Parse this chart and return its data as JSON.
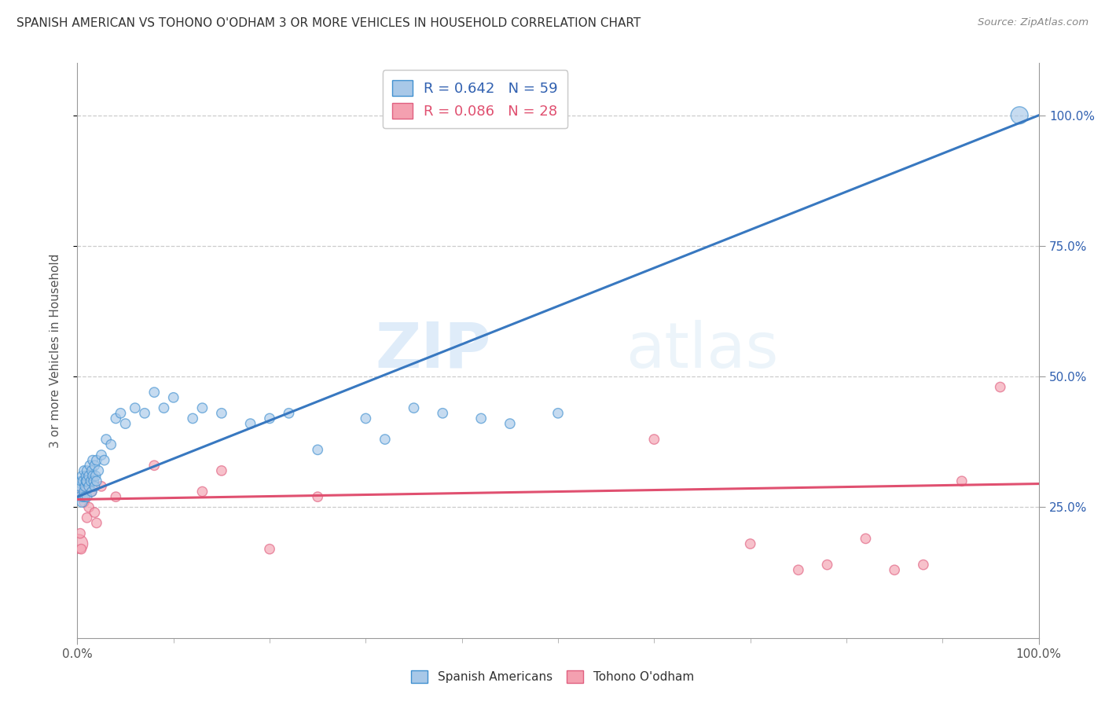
{
  "title": "SPANISH AMERICAN VS TOHONO O'ODHAM 3 OR MORE VEHICLES IN HOUSEHOLD CORRELATION CHART",
  "source": "Source: ZipAtlas.com",
  "ylabel": "3 or more Vehicles in Household",
  "watermark_zip": "ZIP",
  "watermark_atlas": "atlas",
  "blue_R": 0.642,
  "blue_N": 59,
  "pink_R": 0.086,
  "pink_N": 28,
  "blue_fill": "#a8c8e8",
  "pink_fill": "#f4a0b0",
  "blue_edge": "#4090d0",
  "pink_edge": "#e06080",
  "blue_line": "#3878c0",
  "pink_line": "#e05070",
  "blue_legend_text": "#3060b0",
  "pink_legend_text": "#e05070",
  "bg_color": "#ffffff",
  "grid_color": "#cccccc",
  "title_color": "#333333",
  "blue_points_x": [
    0.001,
    0.002,
    0.003,
    0.004,
    0.005,
    0.005,
    0.006,
    0.006,
    0.007,
    0.007,
    0.008,
    0.008,
    0.009,
    0.009,
    0.01,
    0.01,
    0.01,
    0.012,
    0.012,
    0.013,
    0.014,
    0.015,
    0.015,
    0.016,
    0.016,
    0.017,
    0.018,
    0.018,
    0.019,
    0.02,
    0.02,
    0.022,
    0.025,
    0.028,
    0.03,
    0.035,
    0.04,
    0.045,
    0.05,
    0.06,
    0.07,
    0.08,
    0.09,
    0.1,
    0.12,
    0.13,
    0.15,
    0.18,
    0.2,
    0.22,
    0.25,
    0.3,
    0.32,
    0.35,
    0.38,
    0.42,
    0.45,
    0.5,
    0.98
  ],
  "blue_points_y": [
    0.28,
    0.29,
    0.27,
    0.3,
    0.26,
    0.31,
    0.27,
    0.3,
    0.28,
    0.32,
    0.27,
    0.29,
    0.3,
    0.31,
    0.27,
    0.3,
    0.32,
    0.29,
    0.31,
    0.33,
    0.3,
    0.28,
    0.32,
    0.31,
    0.34,
    0.3,
    0.29,
    0.33,
    0.31,
    0.3,
    0.34,
    0.32,
    0.35,
    0.34,
    0.38,
    0.37,
    0.42,
    0.43,
    0.41,
    0.44,
    0.43,
    0.47,
    0.44,
    0.46,
    0.42,
    0.44,
    0.43,
    0.41,
    0.42,
    0.43,
    0.36,
    0.42,
    0.38,
    0.44,
    0.43,
    0.42,
    0.41,
    0.43,
    1.0
  ],
  "pink_points_x": [
    0.001,
    0.003,
    0.004,
    0.005,
    0.006,
    0.007,
    0.008,
    0.01,
    0.012,
    0.015,
    0.018,
    0.02,
    0.025,
    0.04,
    0.08,
    0.13,
    0.15,
    0.2,
    0.25,
    0.6,
    0.7,
    0.75,
    0.78,
    0.82,
    0.85,
    0.88,
    0.92,
    0.96
  ],
  "pink_points_y": [
    0.18,
    0.2,
    0.17,
    0.27,
    0.28,
    0.26,
    0.27,
    0.23,
    0.25,
    0.28,
    0.24,
    0.22,
    0.29,
    0.27,
    0.33,
    0.28,
    0.32,
    0.17,
    0.27,
    0.38,
    0.18,
    0.13,
    0.14,
    0.19,
    0.13,
    0.14,
    0.3,
    0.48
  ],
  "blue_sizes": [
    70,
    70,
    80,
    80,
    90,
    80,
    80,
    80,
    80,
    80,
    80,
    80,
    80,
    80,
    80,
    90,
    80,
    80,
    80,
    80,
    80,
    80,
    80,
    80,
    80,
    80,
    80,
    80,
    80,
    80,
    80,
    80,
    80,
    80,
    80,
    80,
    80,
    80,
    80,
    80,
    80,
    80,
    80,
    80,
    80,
    80,
    80,
    80,
    80,
    80,
    80,
    80,
    80,
    80,
    80,
    80,
    80,
    80,
    250
  ],
  "pink_sizes": [
    300,
    80,
    80,
    80,
    80,
    80,
    80,
    80,
    80,
    80,
    80,
    80,
    80,
    80,
    80,
    80,
    80,
    80,
    80,
    80,
    80,
    80,
    80,
    80,
    80,
    80,
    80,
    80
  ],
  "blue_line_x0": 0.0,
  "blue_line_y0": 0.27,
  "blue_line_x1": 1.0,
  "blue_line_y1": 1.0,
  "pink_line_x0": 0.0,
  "pink_line_y0": 0.265,
  "pink_line_x1": 1.0,
  "pink_line_y1": 0.295,
  "xlim_min": 0.0,
  "xlim_max": 1.0,
  "ylim_min": 0.0,
  "ylim_max": 1.1,
  "yticks": [
    0.25,
    0.5,
    0.75,
    1.0
  ],
  "xticks_major": [
    0.0,
    1.0
  ],
  "xticks_minor": [
    0.1,
    0.2,
    0.3,
    0.4,
    0.5,
    0.6,
    0.7,
    0.8,
    0.9
  ]
}
